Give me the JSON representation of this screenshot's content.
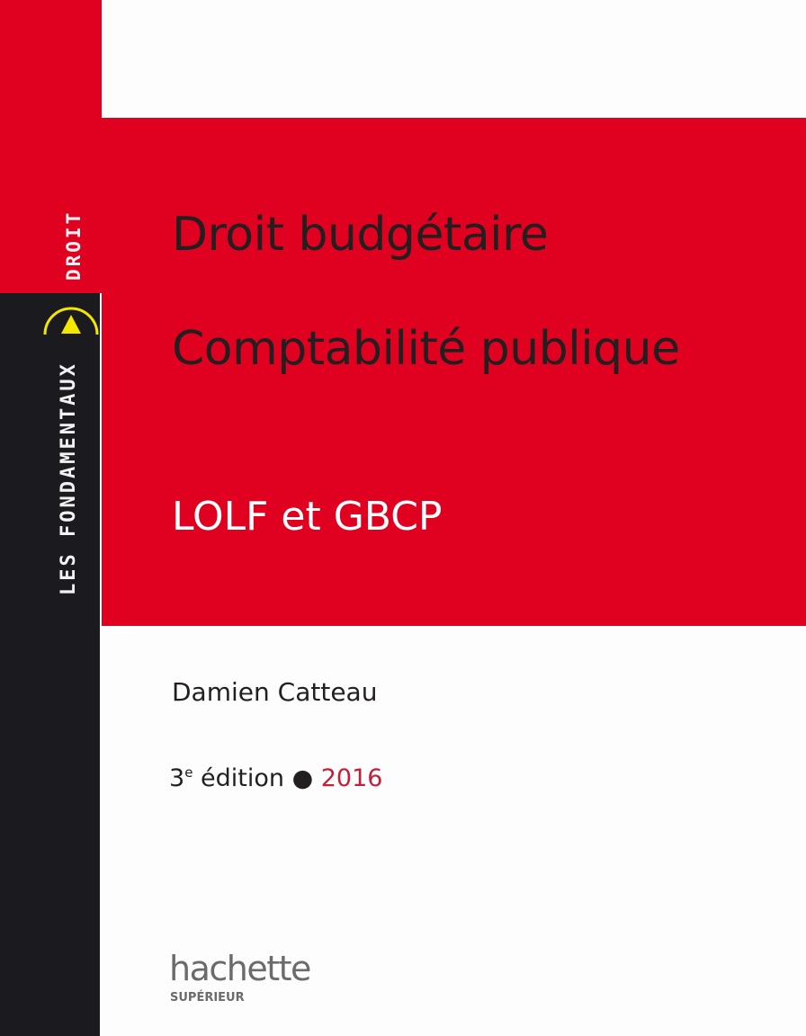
{
  "cover": {
    "collection_discipline": "DROIT",
    "collection_name": "LES FONDAMENTAUX",
    "title_line1": "Droit budgétaire",
    "title_line2": "Comptabilité publique",
    "subtitle": "LOLF et GBCP",
    "author": "Damien Catteau",
    "edition_number": "3",
    "edition_suffix": "e",
    "edition_word": " édition",
    "separator": " ● ",
    "year": "2016",
    "publisher": "hachette",
    "imprint": "SUPÉRIEUR"
  },
  "colors": {
    "red": "#e0001f",
    "black": "#1b1a1f",
    "yellow": "#f3e600",
    "year": "#c0203a"
  },
  "icons": [
    "collection-logo-arc-triangle-icon"
  ]
}
